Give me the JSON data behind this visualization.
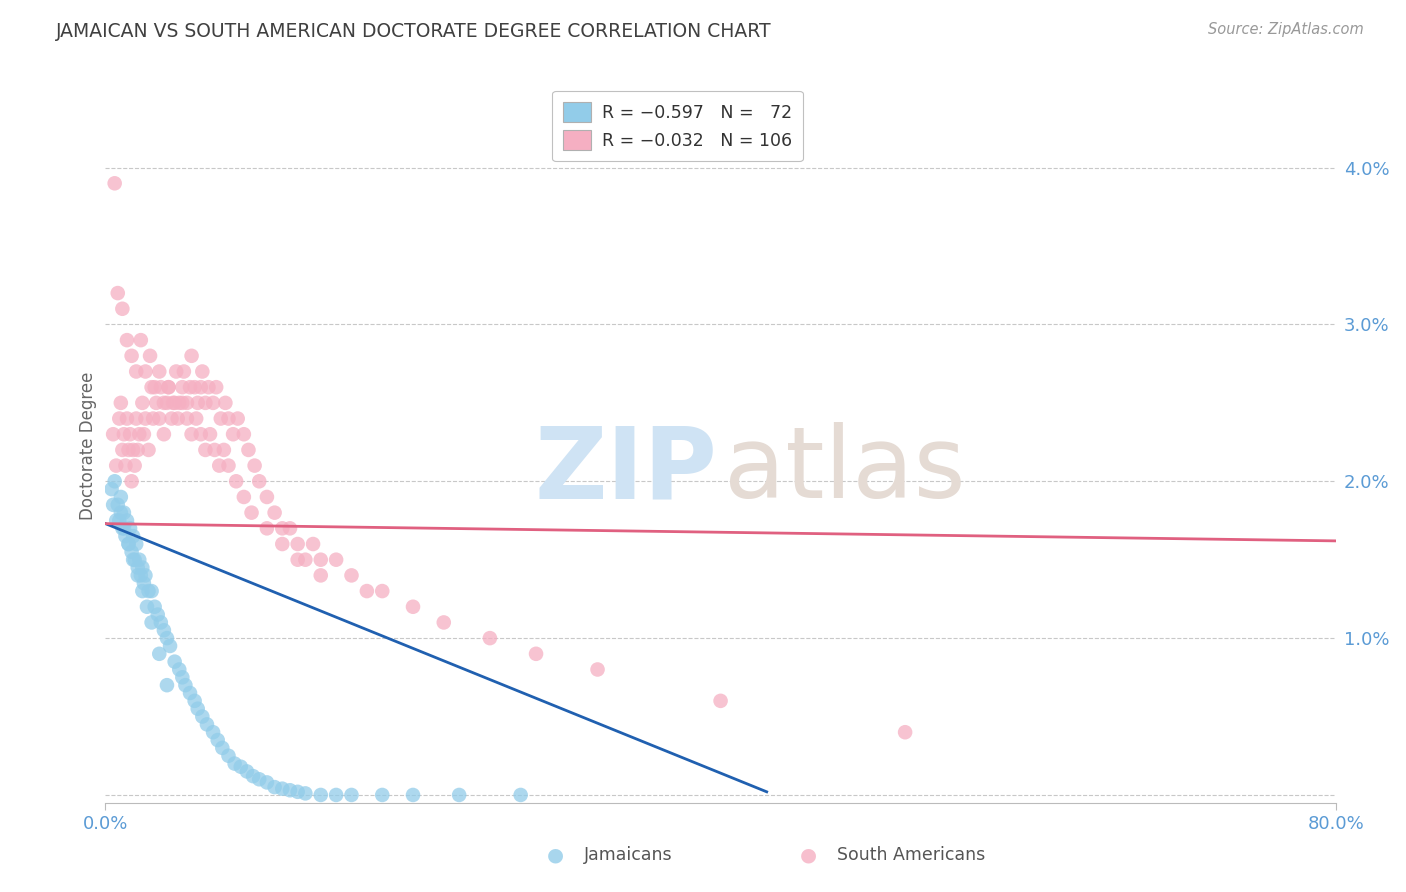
{
  "title": "JAMAICAN VS SOUTH AMERICAN DOCTORATE DEGREE CORRELATION CHART",
  "source": "Source: ZipAtlas.com",
  "ylabel": "Doctorate Degree",
  "y_ticks": [
    0.0,
    1.0,
    2.0,
    3.0,
    4.0
  ],
  "xlim": [
    0.0,
    80.0
  ],
  "ylim": [
    -0.05,
    4.5
  ],
  "legend_label1": "Jamaicans",
  "legend_label2": "South Americans",
  "blue_color": "#92cce9",
  "pink_color": "#f5afc2",
  "blue_line_color": "#2060b0",
  "pink_line_color": "#e06080",
  "axis_label_color": "#5b9bd5",
  "title_color": "#404040",
  "background_color": "#ffffff",
  "grid_color": "#c8c8c8",
  "jamaican_x": [
    0.4,
    0.6,
    0.8,
    0.9,
    1.0,
    1.1,
    1.2,
    1.3,
    1.4,
    1.5,
    1.6,
    1.7,
    1.8,
    1.9,
    2.0,
    2.1,
    2.2,
    2.3,
    2.4,
    2.5,
    2.6,
    2.8,
    3.0,
    3.2,
    3.4,
    3.6,
    3.8,
    4.0,
    4.2,
    4.5,
    4.8,
    5.0,
    5.2,
    5.5,
    5.8,
    6.0,
    6.3,
    6.6,
    7.0,
    7.3,
    7.6,
    8.0,
    8.4,
    8.8,
    9.2,
    9.6,
    10.0,
    10.5,
    11.0,
    11.5,
    12.0,
    12.5,
    13.0,
    14.0,
    15.0,
    16.0,
    18.0,
    20.0,
    23.0,
    27.0,
    0.5,
    0.7,
    1.0,
    1.2,
    1.5,
    1.8,
    2.1,
    2.4,
    2.7,
    3.0,
    3.5,
    4.0
  ],
  "jamaican_y": [
    1.95,
    2.0,
    1.85,
    1.75,
    1.9,
    1.7,
    1.8,
    1.65,
    1.75,
    1.6,
    1.7,
    1.55,
    1.65,
    1.5,
    1.6,
    1.45,
    1.5,
    1.4,
    1.45,
    1.35,
    1.4,
    1.3,
    1.3,
    1.2,
    1.15,
    1.1,
    1.05,
    1.0,
    0.95,
    0.85,
    0.8,
    0.75,
    0.7,
    0.65,
    0.6,
    0.55,
    0.5,
    0.45,
    0.4,
    0.35,
    0.3,
    0.25,
    0.2,
    0.18,
    0.15,
    0.12,
    0.1,
    0.08,
    0.05,
    0.04,
    0.03,
    0.02,
    0.01,
    0.0,
    0.0,
    0.0,
    0.0,
    0.0,
    0.0,
    0.0,
    1.85,
    1.75,
    1.8,
    1.7,
    1.6,
    1.5,
    1.4,
    1.3,
    1.2,
    1.1,
    0.9,
    0.7
  ],
  "south_american_x": [
    0.5,
    0.7,
    0.9,
    1.0,
    1.1,
    1.2,
    1.3,
    1.4,
    1.5,
    1.6,
    1.7,
    1.8,
    1.9,
    2.0,
    2.1,
    2.2,
    2.4,
    2.5,
    2.6,
    2.8,
    3.0,
    3.1,
    3.3,
    3.5,
    3.6,
    3.8,
    4.0,
    4.1,
    4.3,
    4.5,
    4.6,
    4.8,
    5.0,
    5.1,
    5.3,
    5.5,
    5.6,
    5.8,
    6.0,
    6.2,
    6.3,
    6.5,
    6.7,
    7.0,
    7.2,
    7.5,
    7.8,
    8.0,
    8.3,
    8.6,
    9.0,
    9.3,
    9.7,
    10.0,
    10.5,
    11.0,
    11.5,
    12.0,
    12.5,
    13.0,
    13.5,
    14.0,
    15.0,
    16.0,
    17.0,
    18.0,
    20.0,
    22.0,
    25.0,
    28.0,
    32.0,
    40.0,
    52.0,
    0.6,
    0.8,
    1.1,
    1.4,
    1.7,
    2.0,
    2.3,
    2.6,
    2.9,
    3.2,
    3.5,
    3.8,
    4.1,
    4.4,
    4.7,
    5.0,
    5.3,
    5.6,
    5.9,
    6.2,
    6.5,
    6.8,
    7.1,
    7.4,
    7.7,
    8.0,
    8.5,
    9.0,
    9.5,
    10.5,
    11.5,
    12.5,
    14.0
  ],
  "south_american_y": [
    2.3,
    2.1,
    2.4,
    2.5,
    2.2,
    2.3,
    2.1,
    2.4,
    2.2,
    2.3,
    2.0,
    2.2,
    2.1,
    2.4,
    2.2,
    2.3,
    2.5,
    2.3,
    2.4,
    2.2,
    2.6,
    2.4,
    2.5,
    2.4,
    2.6,
    2.3,
    2.5,
    2.6,
    2.4,
    2.5,
    2.7,
    2.5,
    2.6,
    2.7,
    2.5,
    2.6,
    2.8,
    2.6,
    2.5,
    2.6,
    2.7,
    2.5,
    2.6,
    2.5,
    2.6,
    2.4,
    2.5,
    2.4,
    2.3,
    2.4,
    2.3,
    2.2,
    2.1,
    2.0,
    1.9,
    1.8,
    1.7,
    1.7,
    1.6,
    1.5,
    1.6,
    1.5,
    1.5,
    1.4,
    1.3,
    1.3,
    1.2,
    1.1,
    1.0,
    0.9,
    0.8,
    0.6,
    0.4,
    3.9,
    3.2,
    3.1,
    2.9,
    2.8,
    2.7,
    2.9,
    2.7,
    2.8,
    2.6,
    2.7,
    2.5,
    2.6,
    2.5,
    2.4,
    2.5,
    2.4,
    2.3,
    2.4,
    2.3,
    2.2,
    2.3,
    2.2,
    2.1,
    2.2,
    2.1,
    2.0,
    1.9,
    1.8,
    1.7,
    1.6,
    1.5,
    1.4
  ],
  "j_trend_x": [
    0.0,
    43.0
  ],
  "j_trend_y": [
    1.73,
    0.02
  ],
  "s_trend_x": [
    0.0,
    80.0
  ],
  "s_trend_y": [
    1.73,
    1.62
  ]
}
